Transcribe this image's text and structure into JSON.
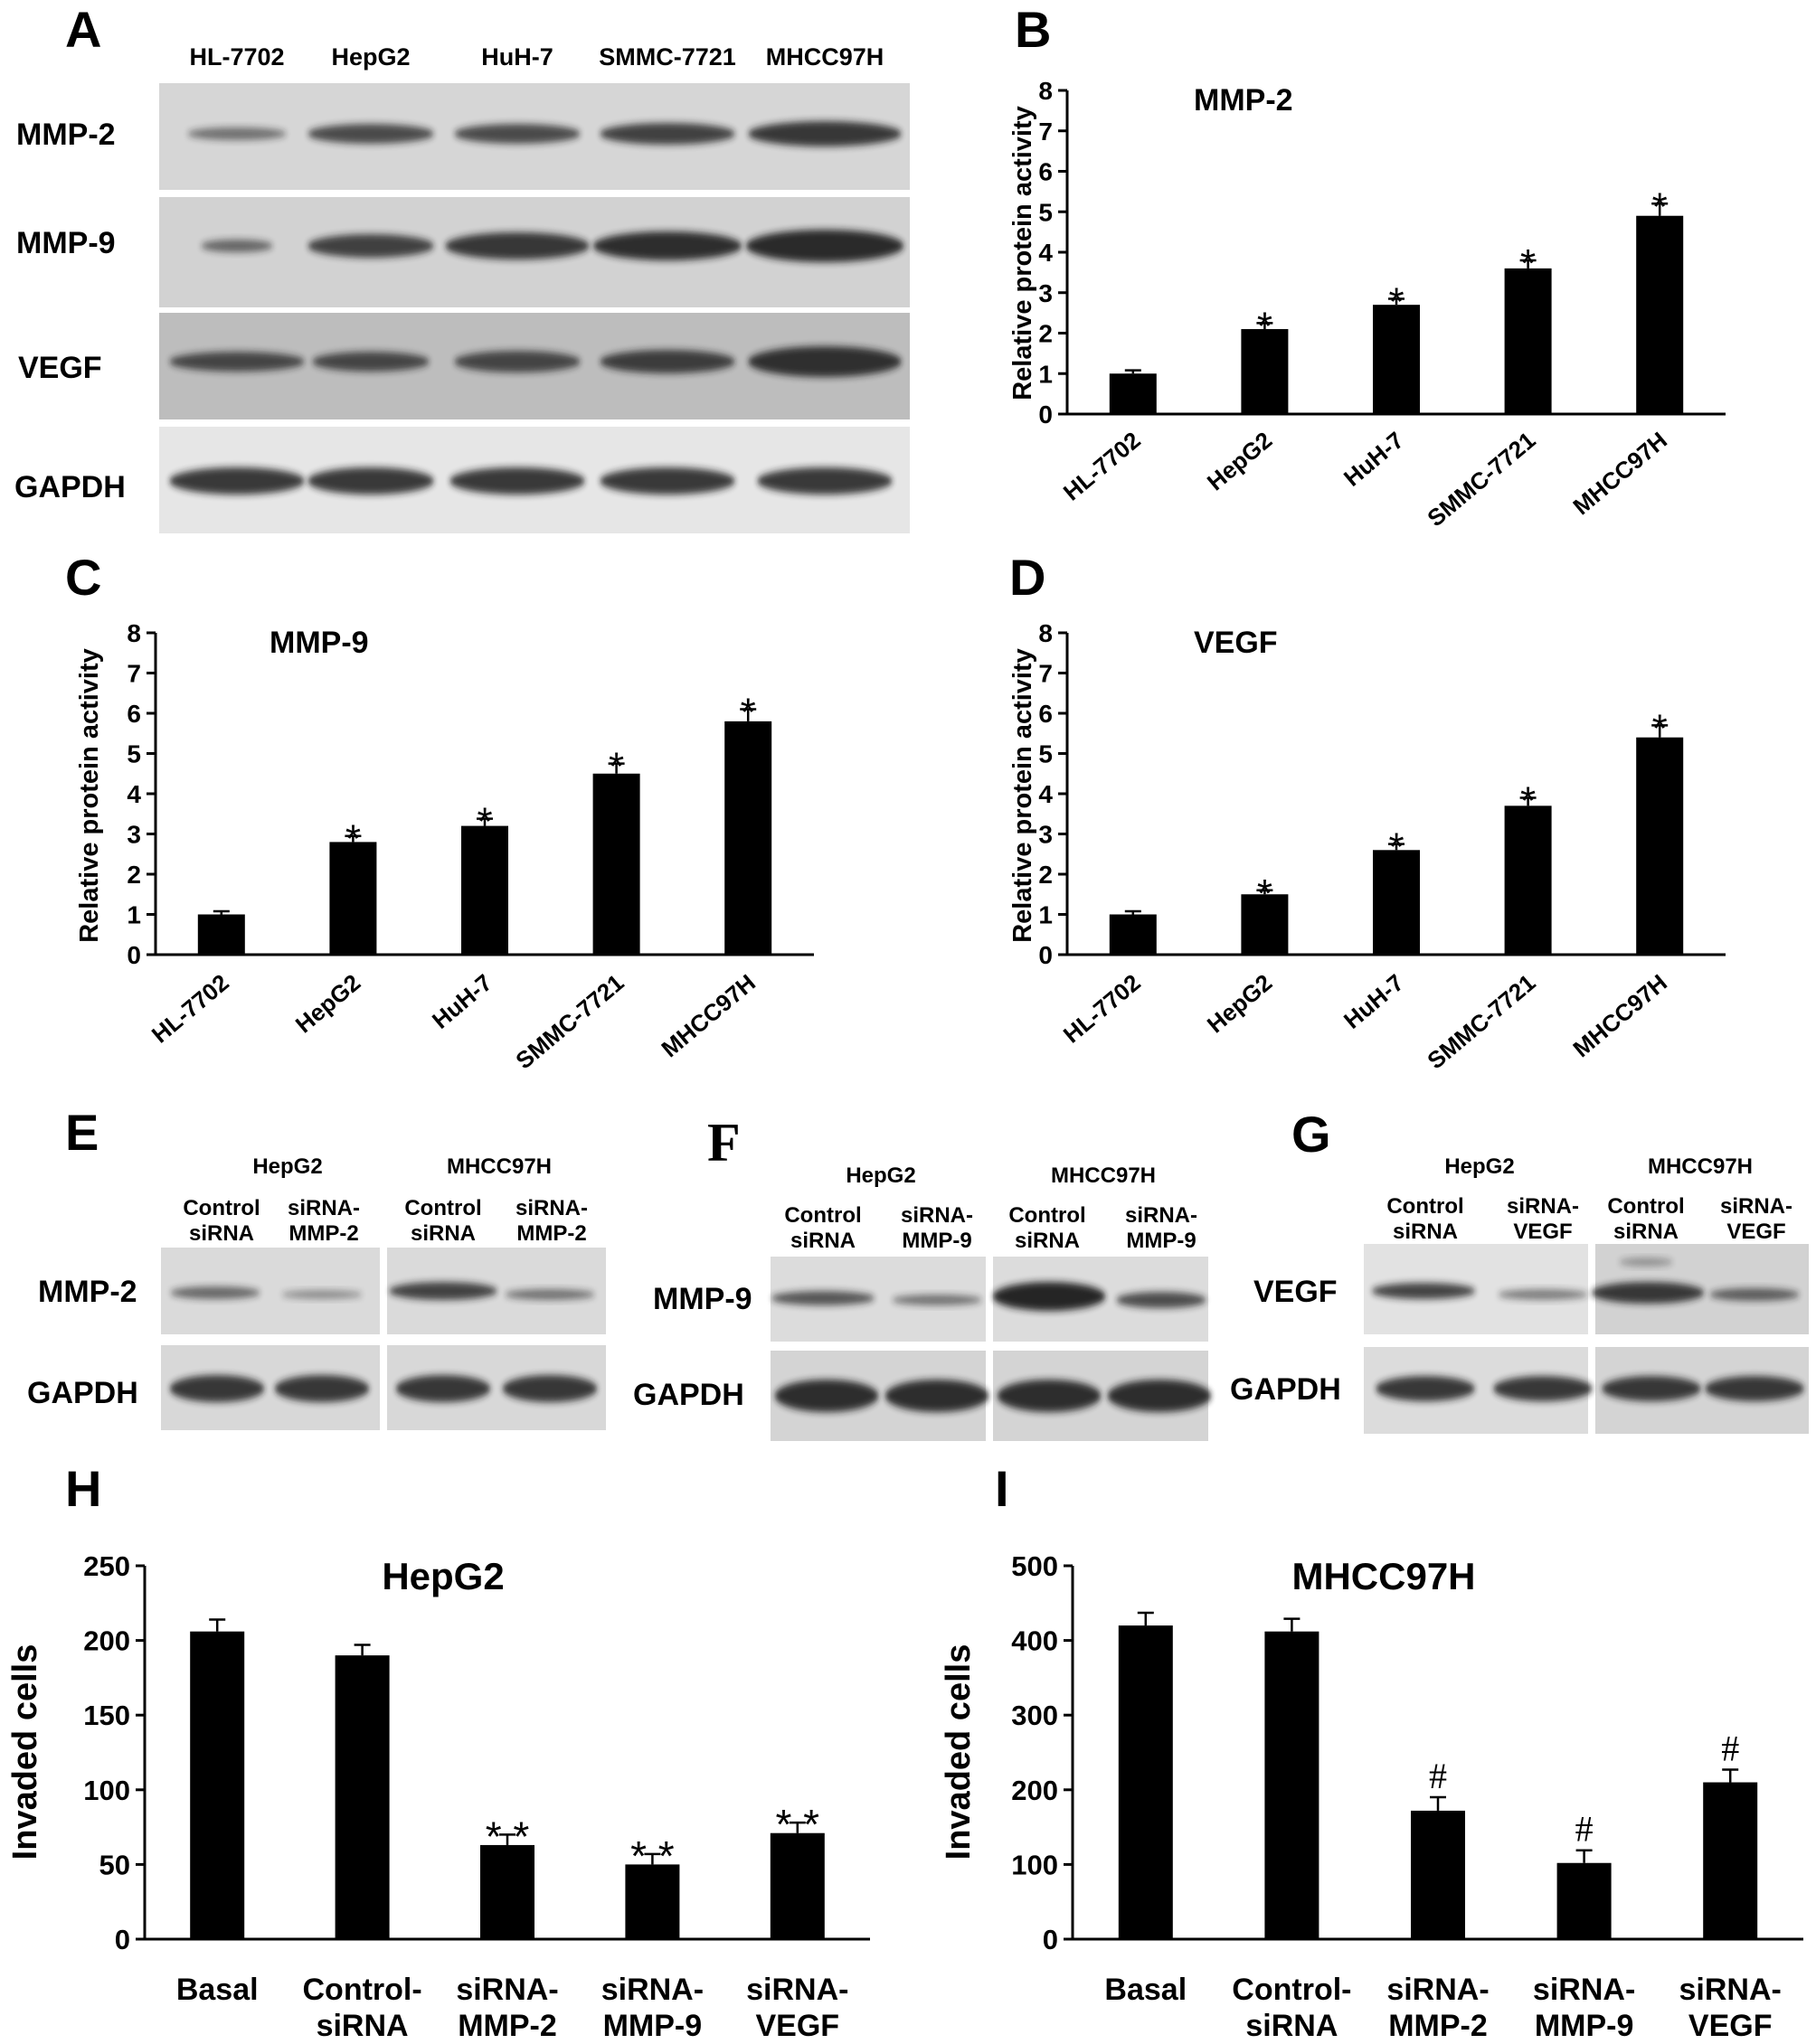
{
  "panels": {
    "A": {
      "label": "A",
      "lanes": [
        "HL-7702",
        "HepG2",
        "HuH-7",
        "SMMC-7721",
        "MHCC97H"
      ],
      "rows": [
        "MMP-2",
        "MMP-9",
        "VEGF",
        "GAPDH"
      ]
    },
    "E": {
      "label": "E",
      "groups": [
        "HepG2",
        "MHCC97H"
      ],
      "lane_lines": [
        [
          "Control",
          "siRNA"
        ],
        [
          "siRNA-",
          "MMP-2"
        ],
        [
          "Control",
          "siRNA"
        ],
        [
          "siRNA-",
          "MMP-2"
        ]
      ],
      "rows": [
        "MMP-2",
        "GAPDH"
      ]
    },
    "F": {
      "label": "F",
      "groups": [
        "HepG2",
        "MHCC97H"
      ],
      "lane_lines": [
        [
          "Control",
          "siRNA"
        ],
        [
          "siRNA-",
          "MMP-9"
        ],
        [
          "Control",
          "siRNA"
        ],
        [
          "siRNA-",
          "MMP-9"
        ]
      ],
      "rows": [
        "MMP-9",
        "GAPDH"
      ]
    },
    "G": {
      "label": "G",
      "groups": [
        "HepG2",
        "MHCC97H"
      ],
      "lane_lines": [
        [
          "Control",
          "siRNA"
        ],
        [
          "siRNA-",
          "VEGF"
        ],
        [
          "Control",
          "siRNA"
        ],
        [
          "siRNA-",
          "VEGF"
        ]
      ],
      "rows": [
        "VEGF",
        "GAPDH"
      ]
    }
  },
  "chart_data": [
    {
      "panel": "B",
      "type": "bar",
      "title": "MMP-2",
      "categories": [
        "HL-7702",
        "HepG2",
        "HuH-7",
        "SMMC-7721",
        "MHCC97H"
      ],
      "values": [
        1.0,
        2.1,
        2.7,
        3.6,
        4.9
      ],
      "errors": [
        0.08,
        0.15,
        0.15,
        0.2,
        0.3
      ],
      "annotations": [
        "",
        "*",
        "*",
        "*",
        "*"
      ],
      "ylabel": "Relative protein activity",
      "ylim": [
        0,
        8
      ],
      "yticks": [
        0,
        1,
        2,
        3,
        4,
        5,
        6,
        7,
        8
      ]
    },
    {
      "panel": "C",
      "type": "bar",
      "title": "MMP-9",
      "categories": [
        "HL-7702",
        "HepG2",
        "HuH-7",
        "SMMC-7721",
        "MHCC97H"
      ],
      "values": [
        1.0,
        2.8,
        3.2,
        4.5,
        5.8
      ],
      "errors": [
        0.08,
        0.15,
        0.18,
        0.25,
        0.3
      ],
      "annotations": [
        "",
        "*",
        "*",
        "*",
        "*"
      ],
      "ylabel": "Relative protein activity",
      "ylim": [
        0,
        8
      ],
      "yticks": [
        0,
        1,
        2,
        3,
        4,
        5,
        6,
        7,
        8
      ]
    },
    {
      "panel": "D",
      "type": "bar",
      "title": "VEGF",
      "categories": [
        "HL-7702",
        "HepG2",
        "HuH-7",
        "SMMC-7721",
        "MHCC97H"
      ],
      "values": [
        1.0,
        1.5,
        2.6,
        3.7,
        5.4
      ],
      "errors": [
        0.08,
        0.1,
        0.15,
        0.2,
        0.3
      ],
      "annotations": [
        "",
        "*",
        "*",
        "*",
        "*"
      ],
      "ylabel": "Relative protein activity",
      "ylim": [
        0,
        8
      ],
      "yticks": [
        0,
        1,
        2,
        3,
        4,
        5,
        6,
        7,
        8
      ]
    },
    {
      "panel": "H",
      "type": "bar",
      "title": "HepG2",
      "categories": [
        [
          "Basal"
        ],
        [
          "Control-",
          "siRNA"
        ],
        [
          "siRNA-",
          "MMP-2"
        ],
        [
          "siRNA-",
          "MMP-9"
        ],
        [
          "siRNA-",
          "VEGF"
        ]
      ],
      "values": [
        206,
        190,
        63,
        50,
        71
      ],
      "errors": [
        8,
        7,
        7,
        7,
        7
      ],
      "annotations": [
        "",
        "",
        "**",
        "**",
        "**"
      ],
      "ylabel": "Invaded cells",
      "ylim": [
        0,
        250
      ],
      "yticks": [
        0,
        50,
        100,
        150,
        200,
        250
      ]
    },
    {
      "panel": "I",
      "type": "bar",
      "title": "MHCC97H",
      "categories": [
        [
          "Basal"
        ],
        [
          "Control-",
          "siRNA"
        ],
        [
          "siRNA-",
          "MMP-2"
        ],
        [
          "siRNA-",
          "MMP-9"
        ],
        [
          "siRNA-",
          "VEGF"
        ]
      ],
      "values": [
        420,
        412,
        172,
        102,
        210
      ],
      "errors": [
        17,
        17,
        18,
        17,
        17
      ],
      "annotations": [
        "",
        "",
        "#",
        "#",
        "#"
      ],
      "ylabel": "Invaded cells",
      "ylim": [
        0,
        500
      ],
      "yticks": [
        0,
        100,
        200,
        300,
        400,
        500
      ]
    }
  ]
}
